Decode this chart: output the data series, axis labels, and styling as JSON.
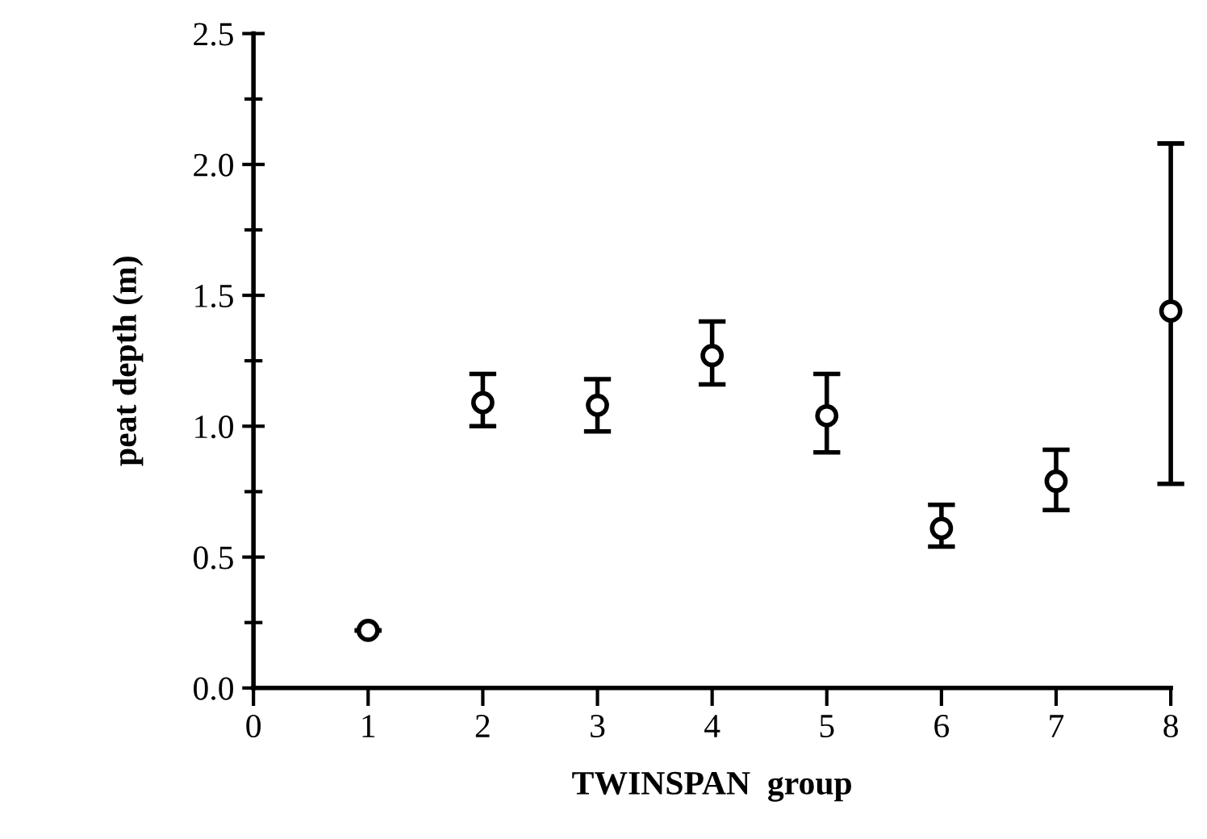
{
  "chart_data": {
    "type": "scatter",
    "xlabel": "TWINSPAN  group",
    "ylabel": "peat depth (m)",
    "x": [
      1,
      2,
      3,
      4,
      5,
      6,
      7,
      8
    ],
    "values": [
      0.22,
      1.09,
      1.08,
      1.27,
      1.04,
      0.61,
      0.79,
      1.44
    ],
    "errors": [
      null,
      [
        1.0,
        1.2
      ],
      [
        0.98,
        1.18
      ],
      [
        1.16,
        1.4
      ],
      [
        0.9,
        1.2
      ],
      [
        0.54,
        0.7
      ],
      [
        0.68,
        0.91
      ],
      [
        0.78,
        2.08
      ]
    ],
    "color": "#000000",
    "marker": "circle",
    "xlim": [
      0,
      8
    ],
    "xticks": [
      0,
      1,
      2,
      3,
      4,
      5,
      6,
      7,
      8
    ],
    "ylim": [
      0,
      2.5
    ],
    "yticks": [
      {
        "value": 0,
        "label": "0.0"
      },
      {
        "value": 0.5,
        "label": "0.5"
      },
      {
        "value": 1,
        "label": "1.0"
      },
      {
        "value": 1.5,
        "label": "1.5"
      },
      {
        "value": 2,
        "label": "2.0"
      },
      {
        "value": 2.5,
        "label": "2.5"
      }
    ],
    "grid": false,
    "legend": false
  }
}
